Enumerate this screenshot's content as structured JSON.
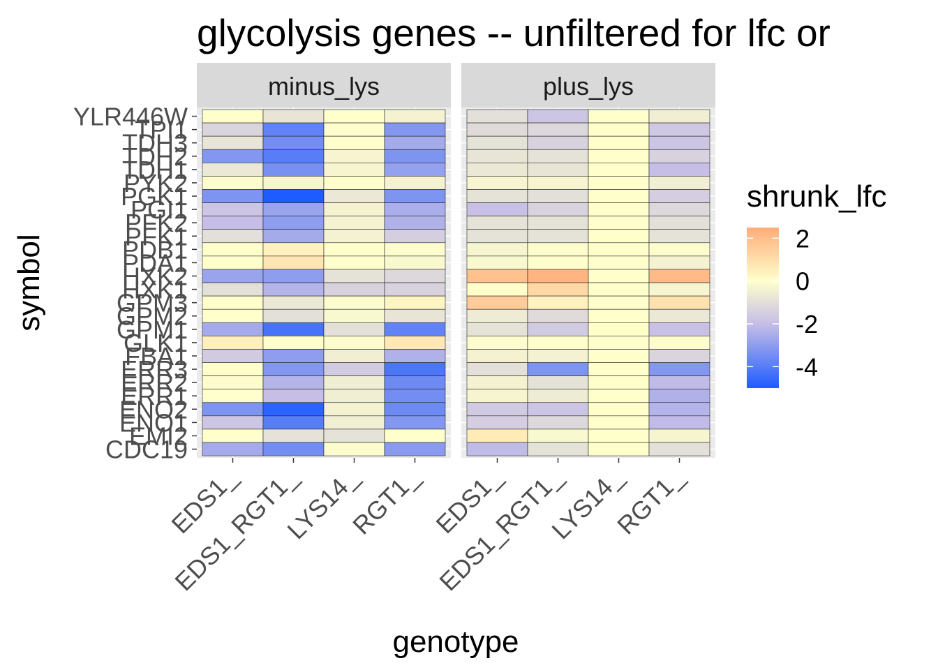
{
  "chart_data": {
    "type": "heatmap",
    "title": "glycolysis genes -- unfiltered for lfc or",
    "xlabel": "genotype",
    "ylabel": "symbol",
    "legend": {
      "title": "shrunk_lfc",
      "ticks": [
        2,
        0,
        -2,
        -4
      ],
      "range": [
        -5,
        2.5
      ],
      "colors": {
        "low": "#1f5cff",
        "mid": "#ffffcc",
        "high": "#ffad7a"
      }
    },
    "facets": [
      "minus_lys",
      "plus_lys"
    ],
    "x": [
      "EDS1_",
      "EDS1_RGT1_",
      "LYS14_",
      "RGT1_"
    ],
    "y": [
      "YLR446W",
      "TPI1",
      "TDH3",
      "TDH2",
      "TDH1",
      "PYK2",
      "PGK1",
      "PGI1",
      "PFK2",
      "PFK1",
      "PDB1",
      "PDA1",
      "HXK2",
      "HXK1",
      "GPM3",
      "GPM2",
      "GPM1",
      "GLK1",
      "FBA1",
      "ERR3",
      "ERR2",
      "ERR1",
      "ENO2",
      "ENO1",
      "EMI2",
      "CDC19"
    ],
    "values": {
      "minus_lys": [
        [
          0.0,
          -0.8,
          0.0,
          -0.4
        ],
        [
          -1.3,
          -3.8,
          -0.1,
          -3.2
        ],
        [
          -0.8,
          -3.5,
          0.0,
          -2.6
        ],
        [
          -3.2,
          -4.0,
          -0.3,
          -3.3
        ],
        [
          -0.7,
          -3.4,
          -0.3,
          -2.9
        ],
        [
          -0.1,
          -0.3,
          0.0,
          -0.4
        ],
        [
          -3.3,
          -5.0,
          -0.7,
          -3.3
        ],
        [
          -1.8,
          -2.8,
          -0.4,
          -2.5
        ],
        [
          -2.0,
          -3.0,
          -0.4,
          -2.4
        ],
        [
          -1.0,
          -2.6,
          -0.4,
          -1.5
        ],
        [
          0.0,
          0.4,
          0.0,
          -0.1
        ],
        [
          0.0,
          0.8,
          0.0,
          -0.2
        ],
        [
          -2.8,
          -3.0,
          -0.9,
          -1.2
        ],
        [
          -1.0,
          -2.3,
          -1.4,
          -1.4
        ],
        [
          0.0,
          -0.7,
          -0.1,
          0.3
        ],
        [
          0.0,
          -1.0,
          -0.2,
          -0.8
        ],
        [
          -2.6,
          -4.3,
          -1.0,
          -3.8
        ],
        [
          0.5,
          0.0,
          -0.1,
          0.7
        ],
        [
          -1.6,
          -3.0,
          -0.5,
          -2.4
        ],
        [
          0.0,
          -3.2,
          -1.6,
          -4.2
        ],
        [
          -0.1,
          -2.3,
          -0.5,
          -3.6
        ],
        [
          0.0,
          -2.0,
          -0.5,
          -3.5
        ],
        [
          -3.3,
          -4.8,
          -0.4,
          -3.6
        ],
        [
          -1.8,
          -4.0,
          -0.5,
          -3.2
        ],
        [
          0.0,
          -0.9,
          -0.9,
          0.0
        ],
        [
          -2.6,
          -3.5,
          -0.1,
          -3.1
        ]
      ],
      "plus_lys": [
        [
          -1.0,
          -1.8,
          0.0,
          -0.5
        ],
        [
          -1.1,
          -1.2,
          0.0,
          -1.7
        ],
        [
          -0.9,
          -1.4,
          0.0,
          -1.8
        ],
        [
          -0.8,
          -0.9,
          0.0,
          -1.4
        ],
        [
          -0.7,
          -0.8,
          0.0,
          -2.0
        ],
        [
          -0.3,
          -0.3,
          0.0,
          -0.5
        ],
        [
          -0.9,
          -1.0,
          0.0,
          -1.5
        ],
        [
          -1.9,
          -1.4,
          0.0,
          -1.2
        ],
        [
          -0.9,
          -0.9,
          0.0,
          -1.0
        ],
        [
          -0.9,
          -0.9,
          0.0,
          -0.9
        ],
        [
          -0.3,
          -0.1,
          0.0,
          -0.1
        ],
        [
          -0.2,
          0.0,
          0.0,
          -0.4
        ],
        [
          1.9,
          2.3,
          0.0,
          2.1
        ],
        [
          0.0,
          1.2,
          0.0,
          -0.3
        ],
        [
          1.6,
          0.4,
          0.0,
          0.9
        ],
        [
          -0.6,
          -1.1,
          0.0,
          -0.7
        ],
        [
          -0.9,
          -1.6,
          0.0,
          -1.9
        ],
        [
          -0.1,
          0.0,
          0.0,
          -0.1
        ],
        [
          -0.4,
          -0.4,
          0.0,
          -1.3
        ],
        [
          -1.0,
          -3.3,
          0.0,
          -3.2
        ],
        [
          -0.4,
          -0.9,
          0.0,
          -2.1
        ],
        [
          -0.3,
          -0.6,
          0.0,
          -2.4
        ],
        [
          -1.6,
          -1.8,
          0.0,
          -2.3
        ],
        [
          -1.5,
          -1.2,
          0.0,
          -2.1
        ],
        [
          0.6,
          -0.2,
          0.0,
          -0.3
        ],
        [
          -2.1,
          -0.9,
          0.0,
          -1.0
        ]
      ]
    }
  }
}
